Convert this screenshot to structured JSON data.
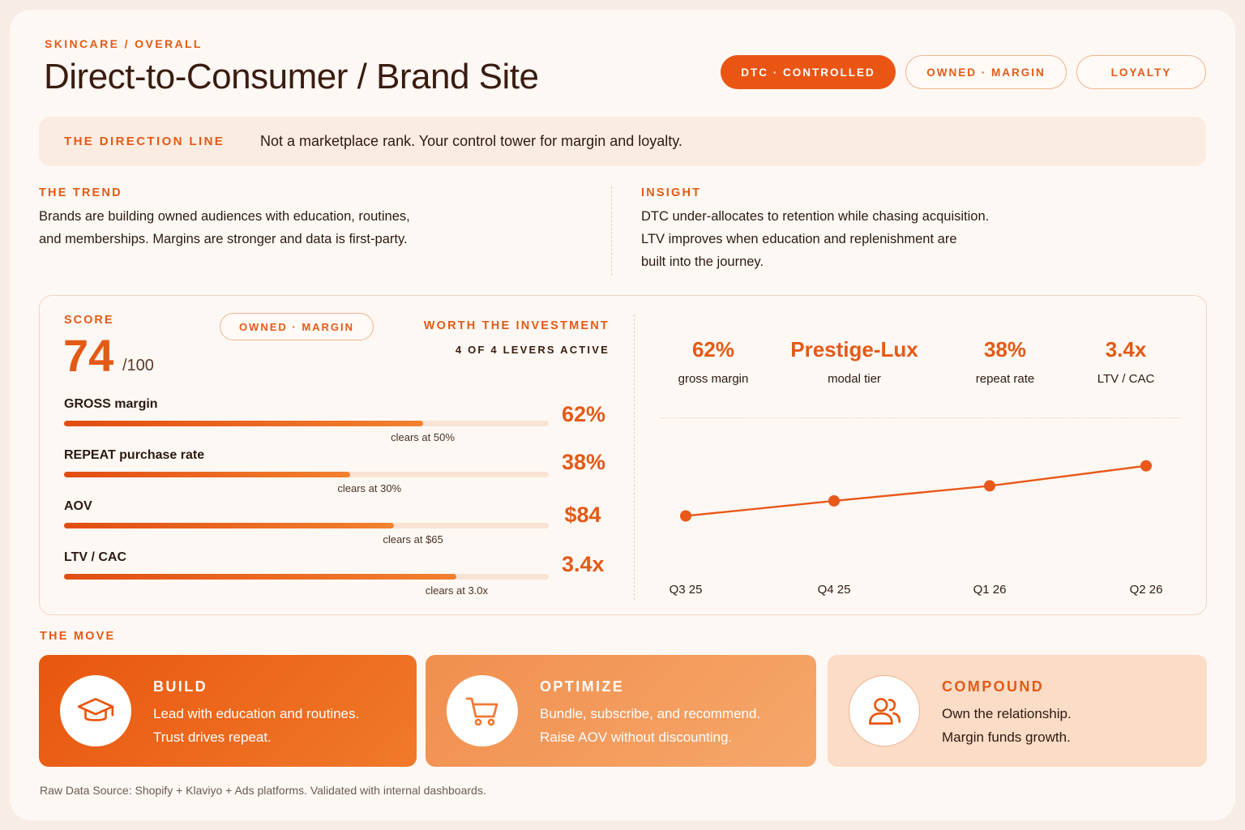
{
  "header": {
    "eyebrow": "SKINCARE / OVERALL",
    "title": "Direct-to-Consumer / Brand Site",
    "pills": [
      {
        "label": "DTC · CONTROLLED",
        "style": "solid"
      },
      {
        "label": "OWNED · MARGIN",
        "style": "outline"
      },
      {
        "label": "LOYALTY",
        "style": "outline"
      }
    ]
  },
  "direction": {
    "label": "THE DIRECTION LINE",
    "text": "Not a marketplace rank. Your control tower for margin and loyalty."
  },
  "trend": {
    "heading": "THE TREND",
    "lines": [
      "Brands are building owned audiences with education, routines,",
      "and memberships. Margins are stronger and data is first-party."
    ]
  },
  "insight": {
    "heading": "INSIGHT",
    "lines": [
      "DTC under-allocates to retention while chasing acquisition.",
      "LTV improves when education and replenishment are",
      "built into the journey."
    ]
  },
  "score": {
    "label": "SCORE",
    "value": "74",
    "denominator": "/100",
    "badge": "OWNED · MARGIN",
    "verdict": "WORTH THE INVESTMENT",
    "levers": "4 OF 4 LEVERS ACTIVE",
    "metrics": [
      {
        "name": "GROSS margin",
        "value": "62%",
        "fill": 0.74,
        "threshold_pos": 0.74,
        "clears": "clears at 50%"
      },
      {
        "name": "REPEAT purchase rate",
        "value": "38%",
        "fill": 0.59,
        "threshold_pos": 0.63,
        "clears": "clears at 30%"
      },
      {
        "name": "AOV",
        "value": "$84",
        "fill": 0.68,
        "threshold_pos": 0.72,
        "clears": "clears at $65"
      },
      {
        "name": "LTV / CAC",
        "value": "3.4x",
        "fill": 0.81,
        "threshold_pos": 0.81,
        "clears": "clears at 3.0x"
      }
    ]
  },
  "stats": [
    {
      "value": "62%",
      "label": "gross margin"
    },
    {
      "value": "Prestige-Lux",
      "label": "modal tier"
    },
    {
      "value": "38%",
      "label": "repeat rate"
    },
    {
      "value": "3.4x",
      "label": "LTV / CAC"
    }
  ],
  "chart_data": {
    "type": "line",
    "categories": [
      "Q3 25",
      "Q4 25",
      "Q1 26",
      "Q2 26"
    ],
    "series": [
      {
        "values": [
          2.4,
          2.7,
          3.0,
          3.4
        ]
      }
    ],
    "ylim": [
      1.0,
      3.8
    ],
    "grid": false,
    "color": "#e8581a"
  },
  "move": {
    "heading": "THE MOVE",
    "cards": [
      {
        "title": "BUILD",
        "line1": "Lead with education and routines.",
        "line2": "Trust drives repeat.",
        "icon": "graduation-cap-icon"
      },
      {
        "title": "OPTIMIZE",
        "line1": "Bundle, subscribe, and recommend.",
        "line2": "Raise AOV without discounting.",
        "icon": "shopping-cart-icon"
      },
      {
        "title": "COMPOUND",
        "line1": "Own the relationship.",
        "line2": "Margin funds growth.",
        "icon": "users-icon"
      }
    ]
  },
  "footer": "Raw Data Source: Shopify + Klaviyo + Ads platforms. Validated with internal dashboards.",
  "colors": {
    "accent": "#e35a16",
    "accent_solid": "#ea5514",
    "background": "#fdf8f4"
  }
}
